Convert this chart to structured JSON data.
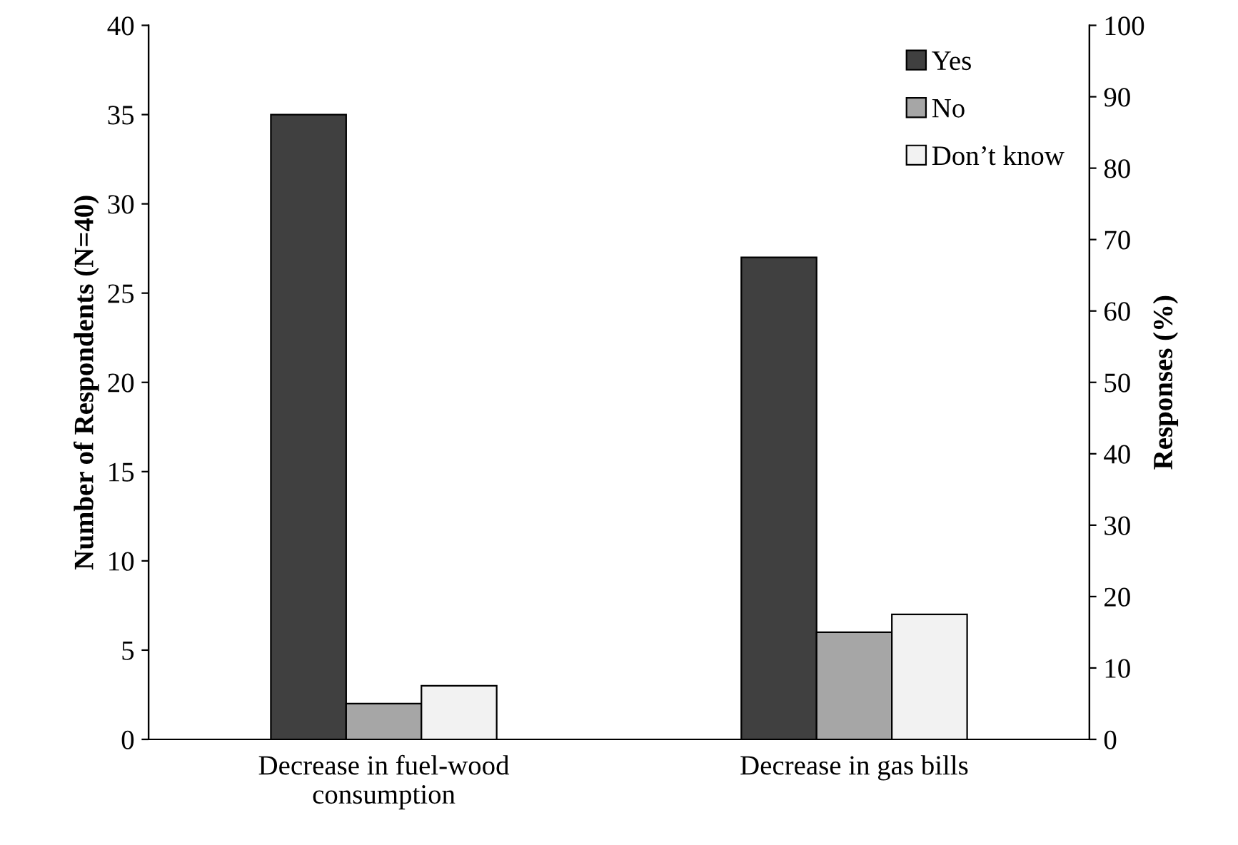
{
  "chart_data": {
    "type": "bar",
    "ylabel": "Number of Respondents (N=40)",
    "y2label": "Responses (%)",
    "categories": [
      "Decrease in fuel-wood\nconsumption",
      "Decrease in gas bills"
    ],
    "series": [
      {
        "name": "Yes",
        "color": "#404040",
        "values": [
          35,
          27
        ]
      },
      {
        "name": "No",
        "color": "#a6a6a6",
        "values": [
          2,
          6
        ]
      },
      {
        "name": "Don’t know",
        "color": "#f2f2f2",
        "values": [
          3,
          7
        ]
      }
    ],
    "ylim": [
      0,
      40
    ],
    "yticks": [
      0,
      5,
      10,
      15,
      20,
      25,
      30,
      35,
      40
    ],
    "y2lim": [
      0,
      100
    ],
    "y2ticks": [
      0,
      10,
      20,
      30,
      40,
      50,
      60,
      70,
      80,
      90,
      100
    ],
    "grid": false,
    "legend": "top right"
  }
}
